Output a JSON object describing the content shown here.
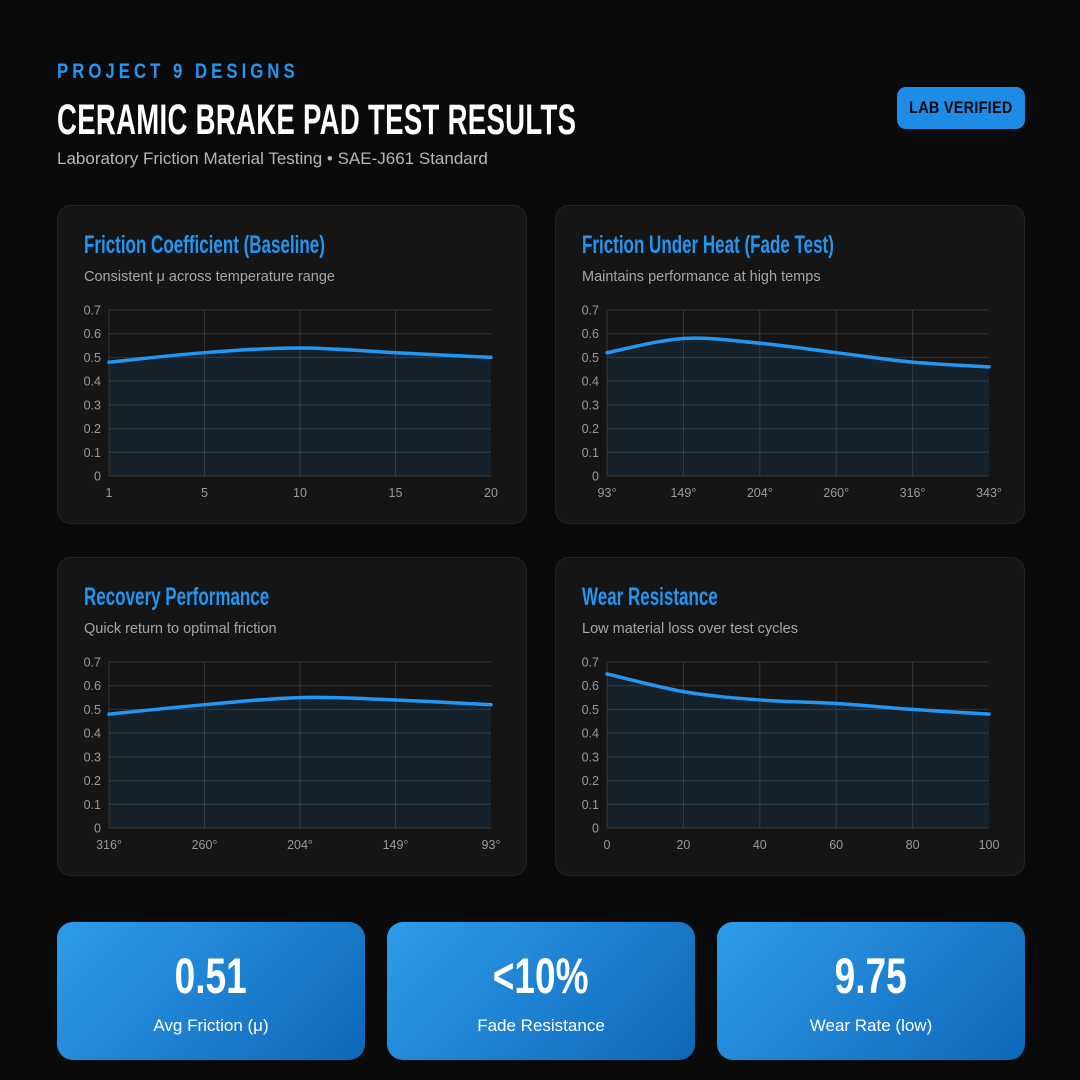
{
  "header": {
    "brand": "PROJECT 9 DESIGNS",
    "title": "CERAMIC BRAKE PAD TEST RESULTS",
    "subtitle": "Laboratory Friction Material Testing • SAE-J661 Standard",
    "badge": "LAB VERIFIED"
  },
  "colors": {
    "accent": "#2196f3",
    "page_bg": "#0a0a0a",
    "panel_bg": "#151515",
    "grid": "rgba(255,255,255,0.13)",
    "area_fill": "rgba(33,150,243,0.10)",
    "tick_text": "#9a9a9a",
    "stat_gradient_start": "#2e9ceb",
    "stat_gradient_end": "#0e67b8",
    "badge_bg": "#1e8be6"
  },
  "chart_data": [
    {
      "type": "area",
      "title": "Friction Coefficient (Baseline)",
      "subtitle": "Consistent μ across temperature range",
      "categories": [
        "1",
        "5",
        "10",
        "15",
        "20"
      ],
      "values": [
        0.48,
        0.52,
        0.54,
        0.52,
        0.5
      ],
      "xlabel": "",
      "ylabel": "",
      "ylim": [
        0,
        0.7
      ],
      "yticks": [
        0,
        0.1,
        0.2,
        0.3,
        0.4,
        0.5,
        0.6,
        0.7
      ],
      "grid": true,
      "legend": "none",
      "line_color": "#2196f3"
    },
    {
      "type": "area",
      "title": "Friction Under Heat (Fade Test)",
      "subtitle": "Maintains performance at high temps",
      "categories": [
        "93°",
        "149°",
        "204°",
        "260°",
        "316°",
        "343°"
      ],
      "values": [
        0.52,
        0.58,
        0.56,
        0.52,
        0.48,
        0.46
      ],
      "xlabel": "",
      "ylabel": "",
      "ylim": [
        0,
        0.7
      ],
      "yticks": [
        0,
        0.1,
        0.2,
        0.3,
        0.4,
        0.5,
        0.6,
        0.7
      ],
      "grid": true,
      "legend": "none",
      "line_color": "#2196f3"
    },
    {
      "type": "area",
      "title": "Recovery Performance",
      "subtitle": "Quick return to optimal friction",
      "categories": [
        "316°",
        "260°",
        "204°",
        "149°",
        "93°"
      ],
      "values": [
        0.48,
        0.52,
        0.55,
        0.54,
        0.52
      ],
      "xlabel": "",
      "ylabel": "",
      "ylim": [
        0,
        0.7
      ],
      "yticks": [
        0,
        0.1,
        0.2,
        0.3,
        0.4,
        0.5,
        0.6,
        0.7
      ],
      "grid": true,
      "legend": "none",
      "line_color": "#2196f3"
    },
    {
      "type": "area",
      "title": "Wear Resistance",
      "subtitle": "Low material loss over test cycles",
      "categories": [
        "0",
        "20",
        "40",
        "60",
        "80",
        "100"
      ],
      "values": [
        0.65,
        0.575,
        0.54,
        0.525,
        0.5,
        0.48
      ],
      "xlabel": "",
      "ylabel": "",
      "ylim": [
        0,
        0.7
      ],
      "yticks": [
        0,
        0.1,
        0.2,
        0.3,
        0.4,
        0.5,
        0.6,
        0.7
      ],
      "grid": true,
      "legend": "none",
      "line_color": "#2196f3"
    }
  ],
  "stats": [
    {
      "value": "0.51",
      "label": "Avg Friction (μ)"
    },
    {
      "value": "<10%",
      "label": "Fade Resistance"
    },
    {
      "value": "9.75",
      "label": "Wear Rate (low)"
    }
  ]
}
